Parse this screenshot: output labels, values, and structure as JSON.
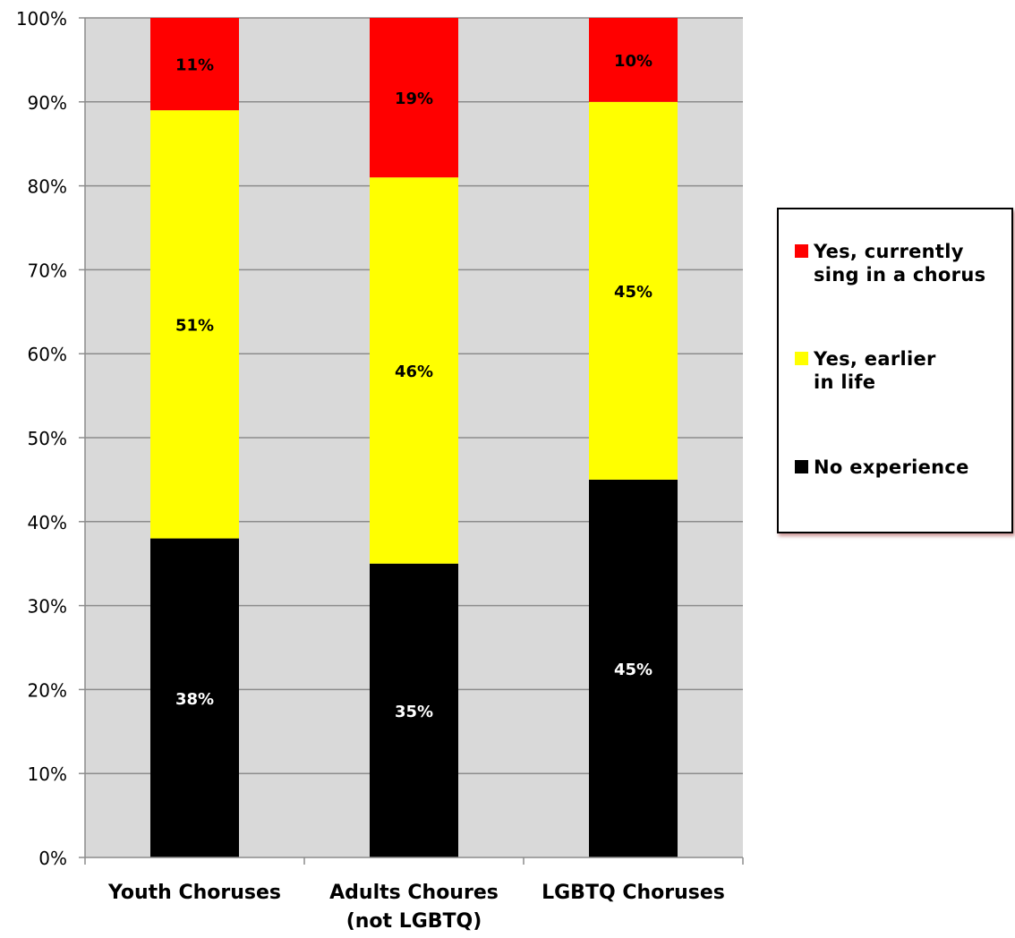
{
  "chart_data": {
    "type": "bar",
    "stacked": true,
    "categories": [
      "Youth Choruses",
      "Adults Choures\n(not LGBTQ)",
      "LGBTQ Choruses"
    ],
    "series": [
      {
        "name": "No experience",
        "values": [
          38,
          35,
          45
        ],
        "labels": [
          "38%",
          "35%",
          "45%"
        ],
        "color": "#000000",
        "label_color": "#ffffff"
      },
      {
        "name": "Yes, earlier\nin life",
        "values": [
          51,
          46,
          45
        ],
        "labels": [
          "51%",
          "46%",
          "45%"
        ],
        "color": "#ffff00",
        "label_color": "#000000"
      },
      {
        "name": "Yes, currently\nsing in a chorus",
        "values": [
          11,
          19,
          10
        ],
        "labels": [
          "11%",
          "19%",
          "10%"
        ],
        "color": "#ff0000",
        "label_color": "#000000"
      }
    ],
    "ylim": [
      0,
      100
    ],
    "y_ticks": [
      "0%",
      "10%",
      "20%",
      "30%",
      "40%",
      "50%",
      "60%",
      "70%",
      "80%",
      "90%",
      "100%"
    ],
    "grid": true,
    "legend_position": "right",
    "plot_background": "#d9d9d9"
  }
}
